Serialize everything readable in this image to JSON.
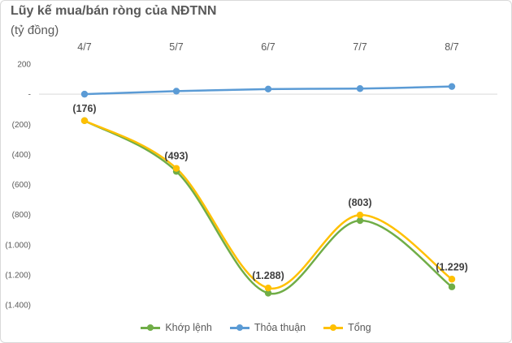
{
  "chart_data": {
    "type": "line",
    "title": "Lũy kế mua/bán ròng của NĐTNN",
    "subtitle": "(tỷ đồng)",
    "categories": [
      "4/7",
      "5/7",
      "6/7",
      "7/7",
      "8/7"
    ],
    "series": [
      {
        "name": "Khớp lệnh",
        "color": "#70ad47",
        "values": [
          -176,
          -513,
          -1322,
          -840,
          -1280
        ]
      },
      {
        "name": "Thỏa thuận",
        "color": "#5b9bd5",
        "values": [
          0,
          20,
          34,
          37,
          51
        ]
      },
      {
        "name": "Tổng",
        "color": "#ffc000",
        "values": [
          -176,
          -493,
          -1288,
          -803,
          -1229
        ]
      }
    ],
    "data_labels": [
      "(176)",
      "(493)",
      "(1.288)",
      "(803)",
      "(1.229)"
    ],
    "data_labels_series": "Tổng",
    "yticks": [
      200,
      0,
      -200,
      -400,
      -600,
      -800,
      -1000,
      -1200,
      -1400
    ],
    "ytick_labels": [
      "200",
      "-",
      "(200)",
      "(400)",
      "(600)",
      "(800)",
      "(1.000)",
      "(1.200)",
      "(1.400)"
    ],
    "ylim": [
      -1400,
      200
    ],
    "x_axis_position": "top",
    "smooth": true,
    "grid": false,
    "legend_position": "bottom"
  }
}
